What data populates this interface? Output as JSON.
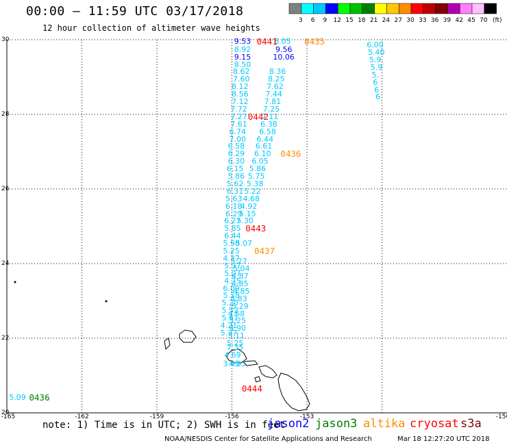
{
  "header": {
    "title": "00:00 – 11:59 UTC 03/17/2018",
    "subtitle": "12 hour collection of altimeter wave heights"
  },
  "colorbar": {
    "unit": "(ft)",
    "bins": [
      {
        "color": "#808080",
        "label": "3"
      },
      {
        "color": "#00ffff",
        "label": "6"
      },
      {
        "color": "#00c8ff",
        "label": "9"
      },
      {
        "color": "#0000ff",
        "label": "12"
      },
      {
        "color": "#00ff00",
        "label": "15"
      },
      {
        "color": "#00c000",
        "label": "18"
      },
      {
        "color": "#008000",
        "label": "21"
      },
      {
        "color": "#ffff00",
        "label": "24"
      },
      {
        "color": "#ffc800",
        "label": "27"
      },
      {
        "color": "#ff8c00",
        "label": "30"
      },
      {
        "color": "#ff0000",
        "label": "33"
      },
      {
        "color": "#c00000",
        "label": "36"
      },
      {
        "color": "#800000",
        "label": "39"
      },
      {
        "color": "#b000b0",
        "label": "42"
      },
      {
        "color": "#ff80ff",
        "label": "45"
      },
      {
        "color": "#ffc0ff",
        "label": "70"
      },
      {
        "color": "#000000",
        "label": ""
      }
    ]
  },
  "axes": {
    "lat_ticks": [
      "30",
      "28",
      "26",
      "24",
      "22",
      "20"
    ],
    "lon_ticks": [
      "-165",
      "-162",
      "-159",
      "-156",
      "-153",
      "-150"
    ]
  },
  "observations": [
    {
      "v": "9.53",
      "lon": -155.8,
      "lat": 29.95,
      "c": "#0000ff"
    },
    {
      "v": "8.92",
      "lon": -155.8,
      "lat": 29.73,
      "c": "#00c8ff"
    },
    {
      "v": "9.15",
      "lon": -155.8,
      "lat": 29.53,
      "c": "#0000ff"
    },
    {
      "v": "8.50",
      "lon": -155.8,
      "lat": 29.33,
      "c": "#00c8ff"
    },
    {
      "v": "8.62",
      "lon": -155.85,
      "lat": 29.13,
      "c": "#00c8ff"
    },
    {
      "v": "7.60",
      "lon": -155.85,
      "lat": 28.93,
      "c": "#00c8ff"
    },
    {
      "v": "8.12",
      "lon": -155.9,
      "lat": 28.73,
      "c": "#00c8ff"
    },
    {
      "v": "8.56",
      "lon": -155.9,
      "lat": 28.53,
      "c": "#00c8ff"
    },
    {
      "v": "7.12",
      "lon": -155.9,
      "lat": 28.33,
      "c": "#00c8ff"
    },
    {
      "v": "7.72",
      "lon": -155.95,
      "lat": 28.13,
      "c": "#00c8ff"
    },
    {
      "v": "7.27",
      "lon": -155.95,
      "lat": 27.93,
      "c": "#00c8ff"
    },
    {
      "v": "7.61",
      "lon": -155.95,
      "lat": 27.73,
      "c": "#00c8ff"
    },
    {
      "v": "6.74",
      "lon": -156.0,
      "lat": 27.53,
      "c": "#00c8ff"
    },
    {
      "v": "7.00",
      "lon": -156.0,
      "lat": 27.33,
      "c": "#00c8ff"
    },
    {
      "v": "6.58",
      "lon": -156.05,
      "lat": 27.13,
      "c": "#00c8ff"
    },
    {
      "v": "6.29",
      "lon": -156.05,
      "lat": 26.93,
      "c": "#00c8ff"
    },
    {
      "v": "6.30",
      "lon": -156.05,
      "lat": 26.73,
      "c": "#00c8ff"
    },
    {
      "v": "6.15",
      "lon": -156.1,
      "lat": 26.53,
      "c": "#00c8ff"
    },
    {
      "v": "5.86",
      "lon": -156.05,
      "lat": 26.33,
      "c": "#00c8ff"
    },
    {
      "v": "5.62",
      "lon": -156.1,
      "lat": 26.13,
      "c": "#00c8ff"
    },
    {
      "v": "6.31",
      "lon": -156.1,
      "lat": 25.93,
      "c": "#00c8ff"
    },
    {
      "v": "5.63",
      "lon": -156.15,
      "lat": 25.73,
      "c": "#00c8ff"
    },
    {
      "v": "6.18",
      "lon": -156.15,
      "lat": 25.53,
      "c": "#00c8ff"
    },
    {
      "v": "6.29",
      "lon": -156.15,
      "lat": 25.33,
      "c": "#00c8ff"
    },
    {
      "v": "6.27",
      "lon": -156.2,
      "lat": 25.13,
      "c": "#00c8ff"
    },
    {
      "v": "5.85",
      "lon": -156.2,
      "lat": 24.93,
      "c": "#00c8ff"
    },
    {
      "v": "6.44",
      "lon": -156.2,
      "lat": 24.73,
      "c": "#00c8ff"
    },
    {
      "v": "5.98",
      "lon": -156.25,
      "lat": 24.53,
      "c": "#00c8ff"
    },
    {
      "v": "5.25",
      "lon": -156.25,
      "lat": 24.33,
      "c": "#00c8ff"
    },
    {
      "v": "4.37",
      "lon": -156.25,
      "lat": 24.13,
      "c": "#00c8ff"
    },
    {
      "v": "5.37",
      "lon": -156.2,
      "lat": 23.93,
      "c": "#00c8ff"
    },
    {
      "v": "5.07",
      "lon": -156.2,
      "lat": 23.73,
      "c": "#00c8ff"
    },
    {
      "v": "4.75",
      "lon": -156.2,
      "lat": 23.53,
      "c": "#00c8ff"
    },
    {
      "v": "6.09",
      "lon": -156.25,
      "lat": 23.33,
      "c": "#00c8ff"
    },
    {
      "v": "5.28",
      "lon": -156.25,
      "lat": 23.13,
      "c": "#00c8ff"
    },
    {
      "v": "5.20",
      "lon": -156.3,
      "lat": 22.93,
      "c": "#00c8ff"
    },
    {
      "v": "5.52",
      "lon": -156.3,
      "lat": 22.73,
      "c": "#00c8ff"
    },
    {
      "v": "5.61",
      "lon": -156.3,
      "lat": 22.53,
      "c": "#00c8ff"
    },
    {
      "v": "4.21",
      "lon": -156.35,
      "lat": 22.33,
      "c": "#00c8ff"
    },
    {
      "v": "5.37",
      "lon": -156.35,
      "lat": 22.13,
      "c": "#00c8ff"
    },
    {
      "v": "7.35",
      "lon": -156.1,
      "lat": 21.75,
      "c": "#00c8ff"
    },
    {
      "v": "4.69",
      "lon": -156.2,
      "lat": 21.55,
      "c": "#00c8ff"
    },
    {
      "v": "3.05",
      "lon": -156.25,
      "lat": 21.3,
      "c": "#00c8ff"
    },
    {
      "v": "5.27",
      "lon": -155.95,
      "lat": 24.05,
      "c": "#00c8ff"
    },
    {
      "v": "5.04",
      "lon": -155.85,
      "lat": 23.85,
      "c": "#00c8ff"
    },
    {
      "v": "4.87",
      "lon": -155.9,
      "lat": 23.65,
      "c": "#00c8ff"
    },
    {
      "v": "4.85",
      "lon": -155.9,
      "lat": 23.45,
      "c": "#00c8ff"
    },
    {
      "v": "4.85",
      "lon": -155.85,
      "lat": 23.25,
      "c": "#00c8ff"
    },
    {
      "v": "4.83",
      "lon": -155.95,
      "lat": 23.05,
      "c": "#00c8ff"
    },
    {
      "v": "5.29",
      "lon": -155.9,
      "lat": 22.85,
      "c": "#00c8ff"
    },
    {
      "v": "4.68",
      "lon": -156.05,
      "lat": 22.65,
      "c": "#00c8ff"
    },
    {
      "v": "5.25",
      "lon": -156.0,
      "lat": 22.45,
      "c": "#00c8ff"
    },
    {
      "v": "4.90",
      "lon": -156.0,
      "lat": 22.25,
      "c": "#00c8ff"
    },
    {
      "v": "5.11",
      "lon": -156.05,
      "lat": 22.05,
      "c": "#00c8ff"
    },
    {
      "v": "5.25",
      "lon": -156.1,
      "lat": 21.85,
      "c": "#00c8ff"
    },
    {
      "v": "4.83",
      "lon": -156.0,
      "lat": 21.3,
      "c": "#00c8ff"
    },
    {
      "v": "8.05",
      "lon": -154.2,
      "lat": 29.95,
      "c": "#00c8ff"
    },
    {
      "v": "9.56",
      "lon": -154.15,
      "lat": 29.73,
      "c": "#0000ff"
    },
    {
      "v": "10.06",
      "lon": -154.25,
      "lat": 29.53,
      "c": "#0000ff"
    },
    {
      "v": "8.36",
      "lon": -154.4,
      "lat": 29.13,
      "c": "#00c8ff"
    },
    {
      "v": "8.25",
      "lon": -154.45,
      "lat": 28.93,
      "c": "#00c8ff"
    },
    {
      "v": "7.62",
      "lon": -154.5,
      "lat": 28.73,
      "c": "#00c8ff"
    },
    {
      "v": "7.44",
      "lon": -154.55,
      "lat": 28.53,
      "c": "#00c8ff"
    },
    {
      "v": "7.81",
      "lon": -154.6,
      "lat": 28.33,
      "c": "#00c8ff"
    },
    {
      "v": "7.25",
      "lon": -154.65,
      "lat": 28.13,
      "c": "#00c8ff"
    },
    {
      "v": "7.11",
      "lon": -154.7,
      "lat": 27.93,
      "c": "#00c8ff"
    },
    {
      "v": "6.38",
      "lon": -154.75,
      "lat": 27.73,
      "c": "#00c8ff"
    },
    {
      "v": "6.58",
      "lon": -154.8,
      "lat": 27.53,
      "c": "#00c8ff"
    },
    {
      "v": "6.44",
      "lon": -154.9,
      "lat": 27.33,
      "c": "#00c8ff"
    },
    {
      "v": "6.61",
      "lon": -154.95,
      "lat": 27.13,
      "c": "#00c8ff"
    },
    {
      "v": "6.10",
      "lon": -155.0,
      "lat": 26.93,
      "c": "#00c8ff"
    },
    {
      "v": "6.05",
      "lon": -155.1,
      "lat": 26.73,
      "c": "#00c8ff"
    },
    {
      "v": "5.86",
      "lon": -155.2,
      "lat": 26.53,
      "c": "#00c8ff"
    },
    {
      "v": "5.75",
      "lon": -155.25,
      "lat": 26.33,
      "c": "#00c8ff"
    },
    {
      "v": "5.38",
      "lon": -155.3,
      "lat": 26.13,
      "c": "#00c8ff"
    },
    {
      "v": "5.22",
      "lon": -155.4,
      "lat": 25.93,
      "c": "#00c8ff"
    },
    {
      "v": "4.68",
      "lon": -155.45,
      "lat": 25.73,
      "c": "#00c8ff"
    },
    {
      "v": "4.92",
      "lon": -155.55,
      "lat": 25.53,
      "c": "#00c8ff"
    },
    {
      "v": "5.15",
      "lon": -155.6,
      "lat": 25.33,
      "c": "#00c8ff"
    },
    {
      "v": "5.30",
      "lon": -155.7,
      "lat": 25.13,
      "c": "#00c8ff"
    },
    {
      "v": "5.07",
      "lon": -155.75,
      "lat": 24.53,
      "c": "#00c8ff"
    },
    {
      "v": "6.00",
      "lon": -150.5,
      "lat": 29.85,
      "c": "#00c8ff"
    },
    {
      "v": "5.40",
      "lon": -150.45,
      "lat": 29.65,
      "c": "#00c8ff"
    },
    {
      "v": "5.9",
      "lon": -150.4,
      "lat": 29.45,
      "c": "#00c8ff"
    },
    {
      "v": "5.9",
      "lon": -150.35,
      "lat": 29.25,
      "c": "#00c8ff"
    },
    {
      "v": "5.",
      "lon": -150.3,
      "lat": 29.05,
      "c": "#00c8ff"
    },
    {
      "v": "6",
      "lon": -150.25,
      "lat": 28.85,
      "c": "#00c8ff"
    },
    {
      "v": "6",
      "lon": -150.2,
      "lat": 28.65,
      "c": "#00c8ff"
    },
    {
      "v": "6",
      "lon": -150.15,
      "lat": 28.45,
      "c": "#00c8ff"
    },
    {
      "v": "5.09",
      "lon": -164.8,
      "lat": 20.4,
      "c": "#00c8ff"
    }
  ],
  "pass_times": [
    {
      "t": "0441",
      "lon": -154.9,
      "lat": 29.95,
      "c": "#ff0000"
    },
    {
      "t": "0435",
      "lon": -153.0,
      "lat": 29.95,
      "c": "#ff8c00"
    },
    {
      "t": "0442",
      "lon": -155.25,
      "lat": 27.93,
      "c": "#ff0000"
    },
    {
      "t": "0436",
      "lon": -153.95,
      "lat": 26.93,
      "c": "#ff8c00"
    },
    {
      "t": "0443",
      "lon": -155.35,
      "lat": 24.93,
      "c": "#ff0000"
    },
    {
      "t": "0437",
      "lon": -155.0,
      "lat": 24.33,
      "c": "#ff8c00"
    },
    {
      "t": "0444",
      "lon": -155.5,
      "lat": 20.65,
      "c": "#ff0000"
    },
    {
      "t": "0436",
      "lon": -164.0,
      "lat": 20.4,
      "c": "#008000"
    }
  ],
  "note": "note: 1) Time is in UTC; 2) SWH is in feet",
  "legend": [
    {
      "label": "jason2",
      "color": "#0000ff"
    },
    {
      "label": "jason3",
      "color": "#008000"
    },
    {
      "label": "altika",
      "color": "#ff8c00"
    },
    {
      "label": "cryosat",
      "color": "#ff0000"
    },
    {
      "label": "s3a",
      "color": "#800000"
    }
  ],
  "footer": {
    "credit": "NOAA/NESDIS Center for Satellite Applications and Research",
    "timestamp": "Mar 18 12:27:20 UTC 2018"
  }
}
